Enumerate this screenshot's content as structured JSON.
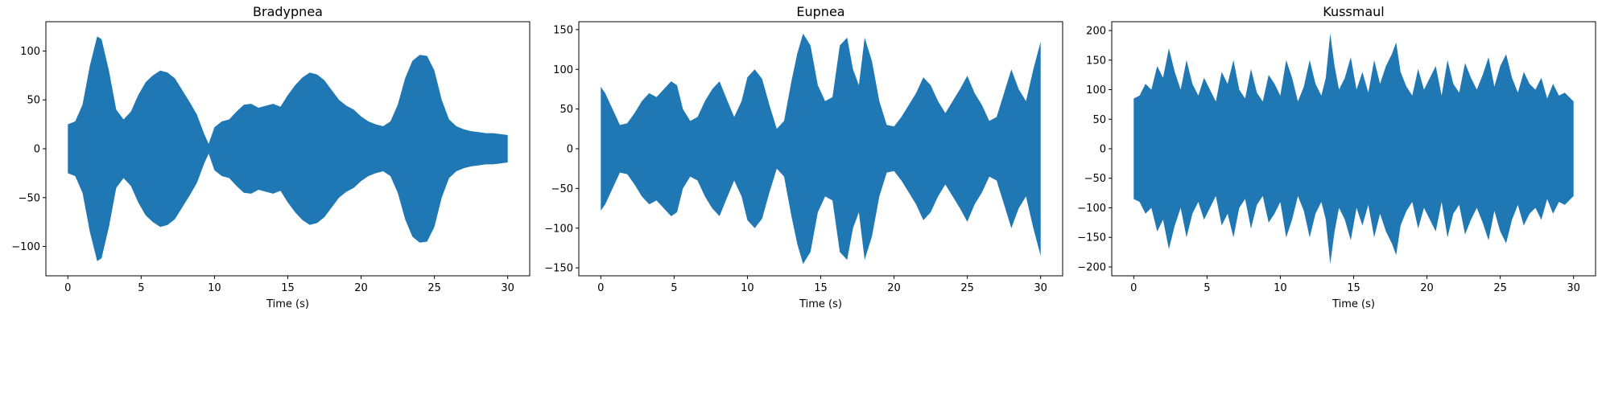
{
  "figure": {
    "background": "#ffffff",
    "series_color": "#1f77b4"
  },
  "chart_data": [
    {
      "type": "area",
      "title": "Bradypnea",
      "xlabel": "Time (s)",
      "ylabel": "",
      "xlim": [
        -1.5,
        31.5
      ],
      "ylim": [
        -130,
        130
      ],
      "xticks": [
        0,
        5,
        10,
        15,
        20,
        25,
        30
      ],
      "xtick_labels": [
        "0",
        "5",
        "10",
        "15",
        "20",
        "25",
        "30"
      ],
      "yticks": [
        -100,
        -50,
        0,
        50,
        100
      ],
      "ytick_labels": [
        "−100",
        "−50",
        "0",
        "50",
        "100"
      ],
      "grid": false,
      "series": [
        {
          "kind": "symmetric-envelope",
          "t": [
            0,
            0.5,
            1,
            1.5,
            2,
            2.3,
            2.8,
            3.3,
            3.8,
            4.3,
            4.8,
            5.3,
            5.8,
            6.3,
            6.8,
            7.3,
            7.8,
            8.3,
            8.8,
            9.3,
            9.6,
            10,
            10.5,
            11,
            11.5,
            12,
            12.5,
            13,
            13.5,
            14,
            14.5,
            15,
            15.5,
            16,
            16.5,
            17,
            17.5,
            18,
            18.5,
            19,
            19.5,
            20,
            20.5,
            21,
            21.5,
            22,
            22.5,
            23,
            23.5,
            24,
            24.5,
            25,
            25.5,
            26,
            26.5,
            27,
            27.5,
            28,
            28.5,
            29,
            29.5,
            30
          ],
          "amplitude": [
            25,
            28,
            45,
            85,
            115,
            112,
            80,
            40,
            30,
            38,
            55,
            68,
            75,
            80,
            78,
            72,
            60,
            48,
            35,
            15,
            5,
            22,
            28,
            30,
            38,
            45,
            46,
            42,
            44,
            46,
            43,
            55,
            65,
            73,
            78,
            76,
            70,
            60,
            50,
            44,
            40,
            33,
            28,
            25,
            23,
            28,
            45,
            72,
            90,
            96,
            95,
            80,
            50,
            30,
            23,
            20,
            18,
            17,
            16,
            16,
            15,
            14
          ]
        }
      ]
    },
    {
      "type": "area",
      "title": "Eupnea",
      "xlabel": "Time (s)",
      "ylabel": "",
      "xlim": [
        -1.5,
        31.5
      ],
      "ylim": [
        -160,
        160
      ],
      "xticks": [
        0,
        5,
        10,
        15,
        20,
        25,
        30
      ],
      "xtick_labels": [
        "0",
        "5",
        "10",
        "15",
        "20",
        "25",
        "30"
      ],
      "yticks": [
        -150,
        -100,
        -50,
        0,
        50,
        100,
        150
      ],
      "ytick_labels": [
        "−150",
        "−100",
        "−50",
        "0",
        "50",
        "100",
        "150"
      ],
      "grid": false,
      "series": [
        {
          "kind": "symmetric-envelope",
          "t": [
            0,
            0.3,
            0.8,
            1.3,
            1.8,
            2.3,
            2.8,
            3.3,
            3.8,
            4.3,
            4.8,
            5.2,
            5.6,
            6.1,
            6.6,
            7.1,
            7.6,
            8.1,
            8.6,
            9.1,
            9.6,
            10,
            10.5,
            11,
            11.5,
            12,
            12.5,
            13,
            13.4,
            13.8,
            14.3,
            14.8,
            15.3,
            15.8,
            16.3,
            16.8,
            17.2,
            17.6,
            18,
            18.5,
            19,
            19.5,
            20,
            20.5,
            21,
            21.5,
            22,
            22.5,
            23,
            23.5,
            24,
            24.5,
            25,
            25.5,
            26,
            26.5,
            27,
            27.5,
            28,
            28.5,
            29,
            29.5,
            30
          ],
          "amplitude": [
            78,
            70,
            50,
            30,
            32,
            45,
            60,
            70,
            65,
            75,
            85,
            80,
            50,
            35,
            40,
            60,
            75,
            85,
            62,
            40,
            60,
            90,
            100,
            88,
            55,
            25,
            35,
            85,
            120,
            145,
            130,
            80,
            60,
            65,
            130,
            140,
            100,
            80,
            140,
            110,
            60,
            30,
            28,
            40,
            55,
            70,
            90,
            80,
            60,
            45,
            60,
            75,
            92,
            70,
            55,
            35,
            40,
            70,
            100,
            75,
            60,
            100,
            135
          ]
        }
      ]
    },
    {
      "type": "area",
      "title": "Kussmaul",
      "xlabel": "Time (s)",
      "ylabel": "",
      "xlim": [
        -1.5,
        31.5
      ],
      "ylim": [
        -215,
        215
      ],
      "xticks": [
        0,
        5,
        10,
        15,
        20,
        25,
        30
      ],
      "xtick_labels": [
        "0",
        "5",
        "10",
        "15",
        "20",
        "25",
        "30"
      ],
      "yticks": [
        -200,
        -150,
        -100,
        -50,
        0,
        50,
        100,
        150,
        200
      ],
      "ytick_labels": [
        "−200",
        "−150",
        "−100",
        "−50",
        "0",
        "50",
        "100",
        "150",
        "200"
      ],
      "grid": false,
      "series": [
        {
          "kind": "symmetric-envelope",
          "t": [
            0,
            0.4,
            0.8,
            1.2,
            1.6,
            2,
            2.4,
            2.8,
            3.2,
            3.6,
            4,
            4.4,
            4.8,
            5.2,
            5.6,
            6,
            6.4,
            6.8,
            7.2,
            7.6,
            8,
            8.4,
            8.8,
            9.2,
            9.6,
            10,
            10.4,
            10.8,
            11.2,
            11.6,
            12,
            12.4,
            12.8,
            13.1,
            13.4,
            13.7,
            14,
            14.4,
            14.8,
            15.2,
            15.6,
            16,
            16.4,
            16.8,
            17.2,
            17.6,
            17.9,
            18.2,
            18.6,
            19,
            19.4,
            19.8,
            20.2,
            20.6,
            21,
            21.4,
            21.8,
            22.2,
            22.6,
            23,
            23.4,
            23.8,
            24.2,
            24.6,
            25,
            25.4,
            25.8,
            26.2,
            26.6,
            27,
            27.4,
            27.8,
            28.2,
            28.6,
            29,
            29.4,
            29.8,
            30
          ],
          "amplitude": [
            85,
            90,
            110,
            100,
            140,
            120,
            170,
            130,
            100,
            150,
            110,
            90,
            120,
            100,
            80,
            130,
            110,
            150,
            100,
            85,
            135,
            95,
            80,
            125,
            110,
            90,
            150,
            120,
            80,
            105,
            150,
            110,
            90,
            120,
            195,
            140,
            100,
            120,
            155,
            100,
            130,
            95,
            150,
            110,
            140,
            160,
            180,
            130,
            105,
            90,
            135,
            100,
            120,
            140,
            90,
            150,
            110,
            95,
            145,
            120,
            100,
            125,
            155,
            105,
            140,
            160,
            120,
            95,
            130,
            110,
            100,
            120,
            85,
            110,
            90,
            95,
            85,
            80
          ]
        }
      ]
    }
  ]
}
